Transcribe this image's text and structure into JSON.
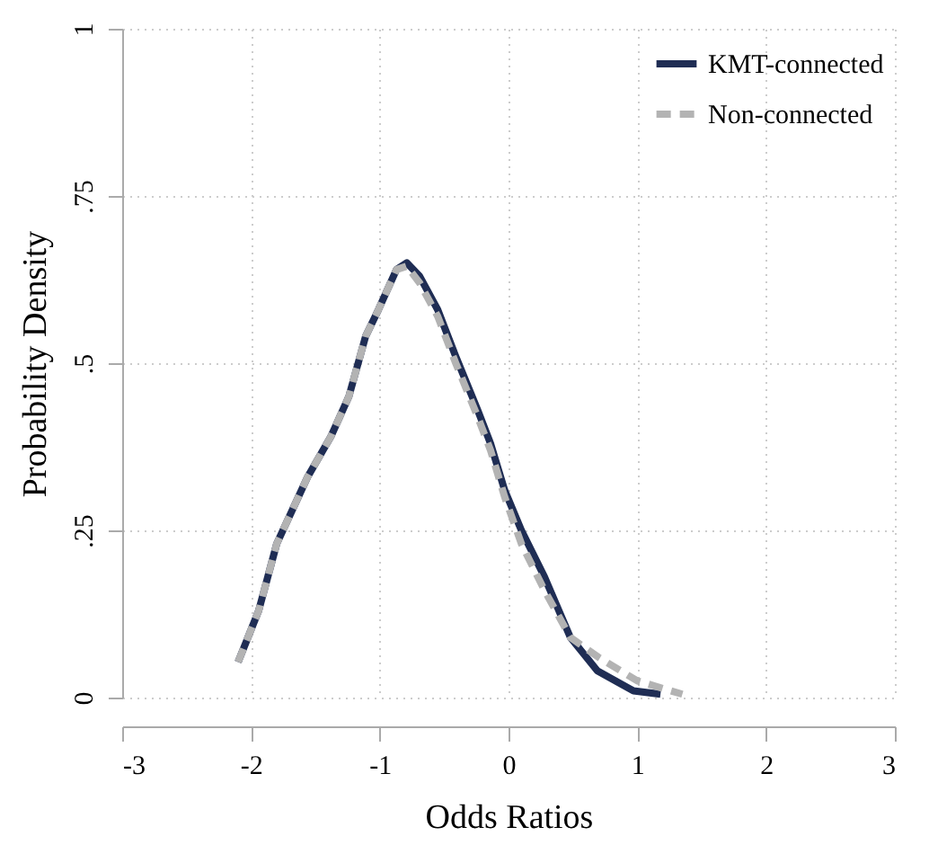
{
  "chart_data": {
    "type": "line",
    "xlabel": "Odds Ratios",
    "ylabel": "Probability Density",
    "xlim": [
      -3,
      3
    ],
    "xticks": [
      -3,
      -2,
      -1,
      0,
      1,
      2,
      3
    ],
    "ylim": [
      0,
      1
    ],
    "yticks": [
      0,
      {
        "value": 0.25,
        "label": ".25"
      },
      {
        "value": 0.5,
        "label": ".5"
      },
      {
        "value": 0.75,
        "label": ".75"
      },
      1
    ],
    "grid": true,
    "legend": "top right",
    "series": [
      {
        "name": "KMT-connected",
        "color": "#1f2d54",
        "line_style": "solid",
        "x": [
          -2.1,
          -1.94,
          -1.8,
          -1.56,
          -1.38,
          -1.24,
          -1.11,
          -1.01,
          -0.87,
          -0.79,
          -0.69,
          -0.55,
          -0.41,
          -0.24,
          -0.14,
          -0.03,
          0.1,
          0.28,
          0.48,
          0.69,
          0.97,
          1.18
        ],
        "values": [
          0.053,
          0.13,
          0.23,
          0.33,
          0.39,
          0.45,
          0.54,
          0.58,
          0.64,
          0.65,
          0.63,
          0.58,
          0.51,
          0.43,
          0.38,
          0.31,
          0.25,
          0.18,
          0.09,
          0.04,
          0.01,
          0.005
        ]
      },
      {
        "name": "Non-connected",
        "color": "#b3b3b3",
        "line_style": "dashed",
        "x": [
          -2.1,
          -1.94,
          -1.8,
          -1.56,
          -1.38,
          -1.24,
          -1.11,
          -1.01,
          -0.87,
          -0.79,
          -0.69,
          -0.55,
          -0.41,
          -0.24,
          -0.14,
          -0.03,
          0.1,
          0.28,
          0.48,
          0.7,
          1.0,
          1.35
        ],
        "values": [
          0.053,
          0.13,
          0.23,
          0.33,
          0.39,
          0.45,
          0.54,
          0.58,
          0.64,
          0.645,
          0.62,
          0.57,
          0.5,
          0.42,
          0.37,
          0.3,
          0.23,
          0.16,
          0.09,
          0.06,
          0.025,
          0.005
        ]
      }
    ]
  }
}
